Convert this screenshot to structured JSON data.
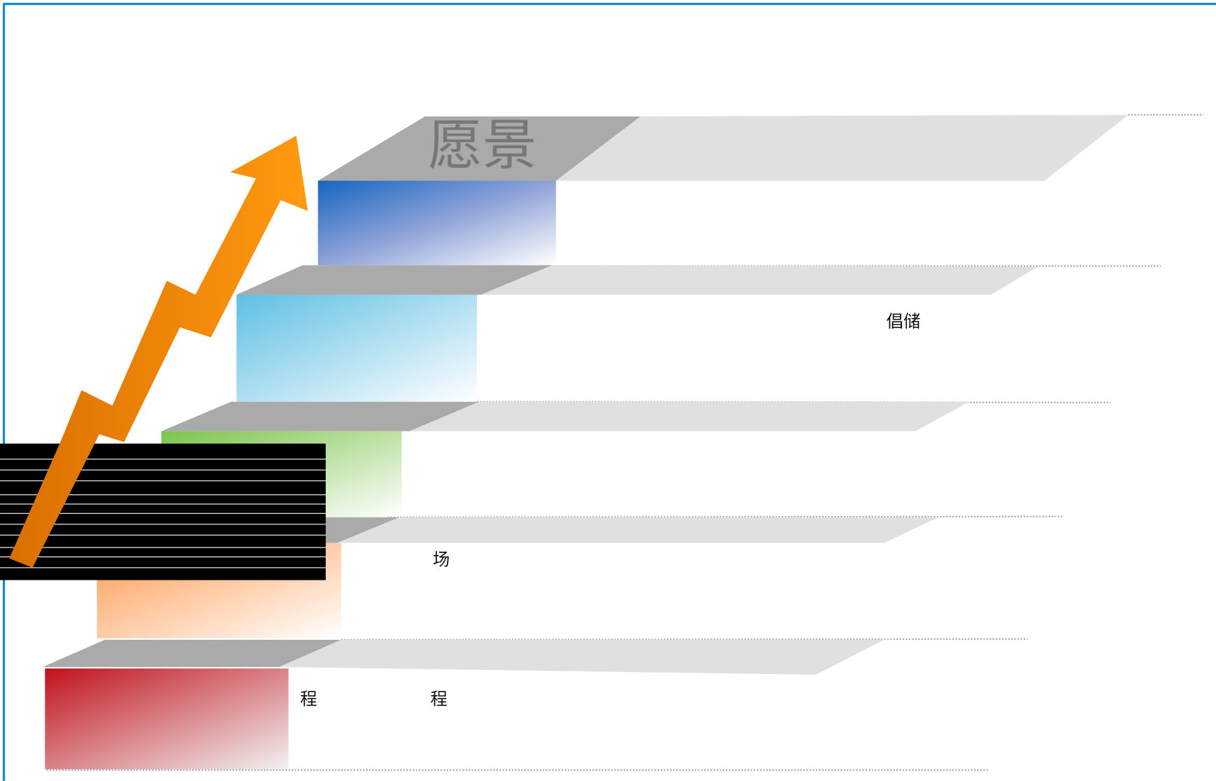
{
  "title": "愿景",
  "labels": [
    "倡储",
    "场",
    "程",
    "程"
  ]
}
